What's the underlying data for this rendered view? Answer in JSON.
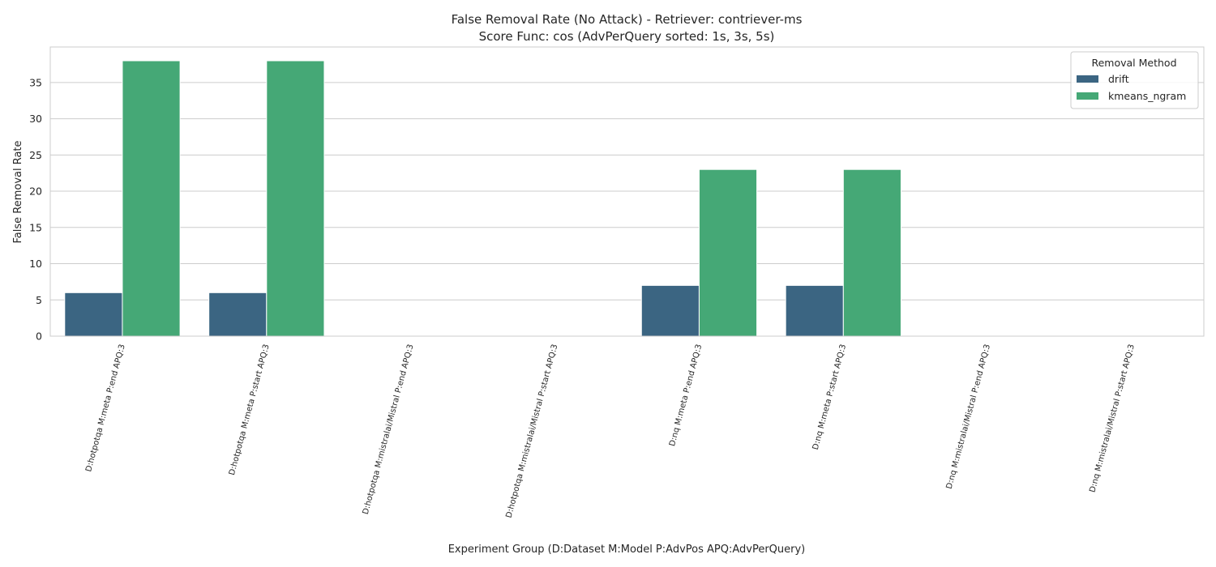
{
  "chart_data": {
    "type": "bar",
    "title": "False Removal Rate (No Attack) - Retriever: contriever-ms",
    "subtitle": "Score Func: cos (AdvPerQuery sorted: 1s, 3s, 5s)",
    "xlabel": "Experiment Group (D:Dataset M:Model P:AdvPos APQ:AdvPerQuery)",
    "ylabel": "False Removal Rate",
    "ylim": [
      0,
      39.9
    ],
    "yticks": [
      0,
      5,
      10,
      15,
      20,
      25,
      30,
      35
    ],
    "grid": "horizontal",
    "categories": [
      "D:hotpotqa M:meta P:end APQ:3",
      "D:hotpotqa M:meta P:start APQ:3",
      "D:hotpotqa M:mistralai/Mistral P:end APQ:3",
      "D:hotpotqa M:mistralai/Mistral P:start APQ:3",
      "D:nq M:meta P:end APQ:3",
      "D:nq M:meta P:start APQ:3",
      "D:nq M:mistralai/Mistral P:end APQ:3",
      "D:nq M:mistralai/Mistral P:start APQ:3"
    ],
    "series": [
      {
        "name": "drift",
        "color": "#3b6582",
        "values": [
          6,
          6,
          0,
          0,
          7,
          7,
          0,
          0
        ]
      },
      {
        "name": "kmeans_ngram",
        "color": "#45a876",
        "values": [
          38,
          38,
          0,
          0,
          23,
          23,
          0,
          0
        ]
      }
    ],
    "legend": {
      "title": "Removal Method",
      "placement": "top-right"
    }
  }
}
